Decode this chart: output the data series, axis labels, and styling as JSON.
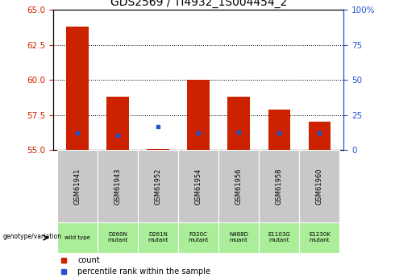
{
  "title": "GDS2569 / TI4932_1S004454_2",
  "samples": [
    "GSM61941",
    "GSM61943",
    "GSM61952",
    "GSM61954",
    "GSM61956",
    "GSM61958",
    "GSM61960"
  ],
  "genotype_labels": [
    "wild type",
    "D260N\nmutant",
    "D261N\nmutant",
    "R320C\nmutant",
    "N488D\nmuant",
    "E1103G\nmutant",
    "E1230K\nmutant"
  ],
  "red_tops": [
    63.8,
    58.8,
    55.05,
    60.0,
    58.8,
    57.9,
    57.0
  ],
  "blue_y": [
    56.22,
    56.05,
    56.7,
    56.22,
    56.3,
    56.22,
    56.22
  ],
  "baseline": 55.0,
  "ylim": [
    55.0,
    65.0
  ],
  "yticks_left": [
    55,
    57.5,
    60,
    62.5,
    65
  ],
  "bar_color": "#cc2200",
  "blue_color": "#2255cc",
  "bar_width": 0.55,
  "label_row1_bg": "#c8c8c8",
  "label_row2_bg": "#aaee99",
  "legend_count_color": "#cc2200",
  "legend_pct_color": "#2255cc",
  "title_fontsize": 10,
  "tick_fontsize": 7.5,
  "genotype_arrow_text": "genotype/variation",
  "legend_label_count": "count",
  "legend_label_pct": "percentile rank within the sample",
  "right_label_pcts": [
    0,
    25,
    50,
    75,
    100
  ]
}
